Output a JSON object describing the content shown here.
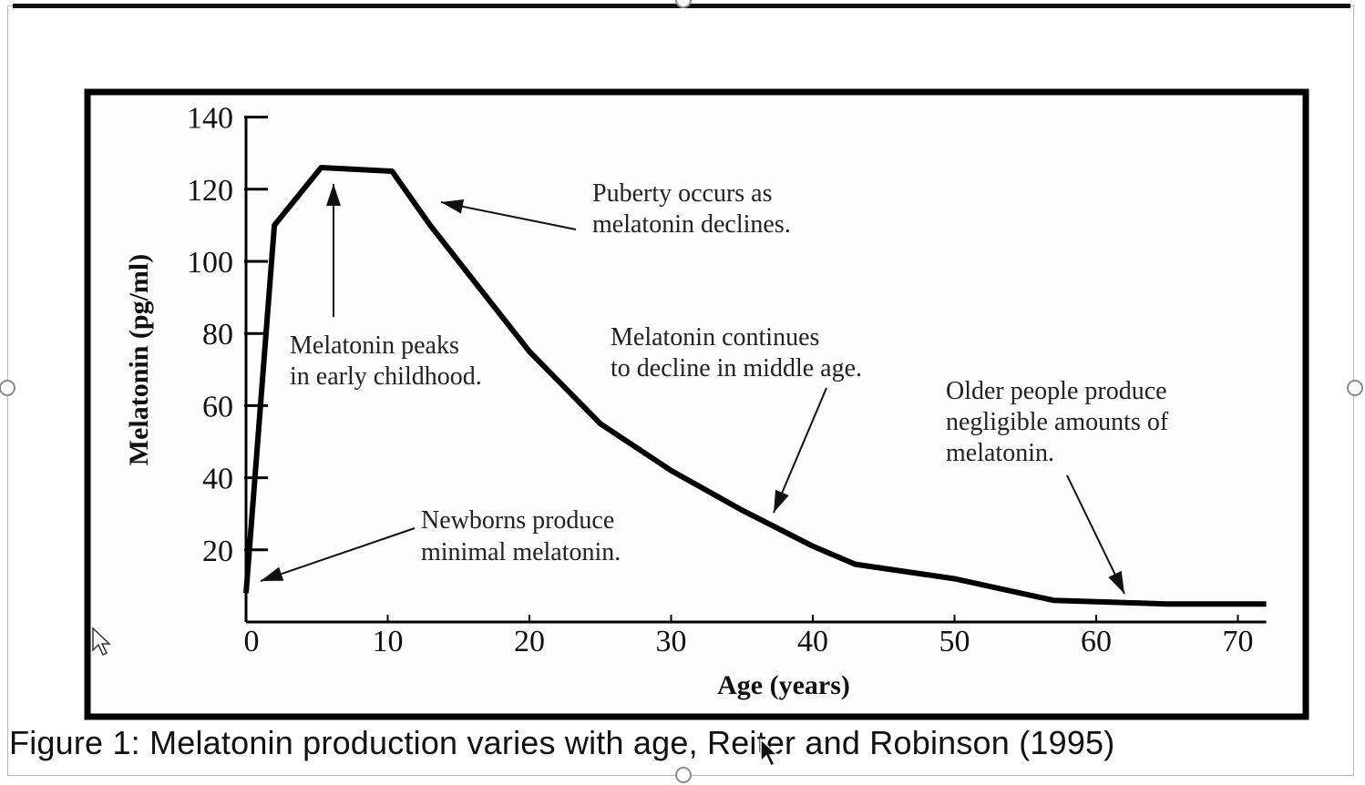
{
  "chart_data": {
    "type": "line",
    "xlabel": "Age (years)",
    "ylabel": "Melatonin (pg/ml)",
    "xlim": [
      0,
      70
    ],
    "ylim": [
      0,
      140
    ],
    "x_ticks": [
      0,
      10,
      20,
      30,
      40,
      50,
      60,
      70
    ],
    "y_ticks": [
      20,
      40,
      60,
      80,
      100,
      120,
      140
    ],
    "grid": false,
    "series": [
      {
        "x": [
          0,
          2,
          5.3,
          10.3,
          13,
          20,
          25,
          30,
          35,
          40,
          43,
          50,
          57,
          65,
          72
        ],
        "y": [
          8,
          110,
          126,
          125,
          110,
          75,
          55,
          42,
          31,
          21,
          16,
          12,
          6,
          5,
          5
        ]
      }
    ],
    "annotations": [
      {
        "id": "peaks",
        "lines": [
          "Melatonin peaks",
          "in early childhood."
        ]
      },
      {
        "id": "puberty",
        "lines": [
          "Puberty occurs as",
          "melatonin declines."
        ]
      },
      {
        "id": "middle",
        "lines": [
          "Melatonin continues",
          "to decline in middle age."
        ]
      },
      {
        "id": "older",
        "lines": [
          "Older people produce",
          "negligible amounts of",
          "melatonin."
        ]
      },
      {
        "id": "newborns",
        "lines": [
          "Newborns produce",
          "minimal melatonin."
        ]
      }
    ],
    "line_color": "#000000"
  },
  "caption": "Figure 1: Melatonin production varies with age, Reiter and Robinson (1995)"
}
